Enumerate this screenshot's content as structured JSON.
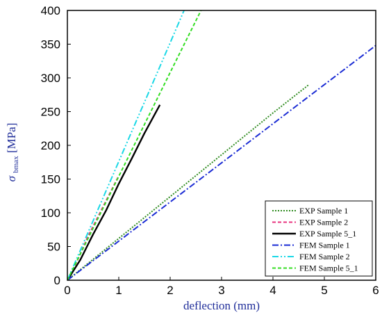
{
  "chart_data": {
    "type": "line",
    "title": "",
    "xlabel": "deflection (mm)",
    "ylabel": {
      "symbol": "σ",
      "subscript": "bmax",
      "unit": "[MPa]"
    },
    "xlim": [
      0,
      6
    ],
    "ylim": [
      0,
      400
    ],
    "xticks": [
      "0",
      "1",
      "2",
      "3",
      "4",
      "5",
      "6"
    ],
    "yticks": [
      "0",
      "50",
      "100",
      "150",
      "200",
      "250",
      "300",
      "350",
      "400"
    ],
    "grid": false,
    "legend_position": "bottom-right",
    "series": [
      {
        "name": "EXP Sample 1",
        "color": "#2e8b1e",
        "dash": "dotted",
        "points": [
          [
            0,
            0
          ],
          [
            1,
            62
          ],
          [
            2,
            124
          ],
          [
            3,
            186
          ],
          [
            4,
            248
          ],
          [
            4.7,
            290
          ]
        ]
      },
      {
        "name": "EXP Sample 2",
        "color": "#e8337f",
        "dash": "dashed",
        "points": [
          [
            0,
            0
          ],
          [
            0.2,
            30
          ],
          [
            0.4,
            65
          ],
          [
            0.6,
            95
          ],
          [
            0.8,
            125
          ],
          [
            1.0,
            155
          ]
        ]
      },
      {
        "name": "EXP Sample 5_1",
        "color": "#000000",
        "dash": "solid",
        "points": [
          [
            0,
            0
          ],
          [
            0.25,
            30
          ],
          [
            0.5,
            68
          ],
          [
            0.75,
            103
          ],
          [
            1.0,
            143
          ],
          [
            1.25,
            180
          ],
          [
            1.5,
            218
          ],
          [
            1.8,
            260
          ]
        ]
      },
      {
        "name": "FEM Sample 1",
        "color": "#1a2bd4",
        "dash": "dashdot",
        "points": [
          [
            0,
            0
          ],
          [
            1,
            58
          ],
          [
            2,
            116
          ],
          [
            3,
            174
          ],
          [
            4,
            232
          ],
          [
            5,
            290
          ],
          [
            6,
            348
          ]
        ]
      },
      {
        "name": "FEM Sample 2",
        "color": "#19d8e6",
        "dash": "dashdotdot",
        "points": [
          [
            0,
            0
          ],
          [
            0.5,
            88
          ],
          [
            1,
            176
          ],
          [
            1.5,
            264
          ],
          [
            2.0,
            352
          ],
          [
            2.27,
            400
          ]
        ]
      },
      {
        "name": "FEM Sample 5_1",
        "color": "#33dd22",
        "dash": "dashed",
        "points": [
          [
            0,
            0
          ],
          [
            0.5,
            77
          ],
          [
            1,
            154
          ],
          [
            1.5,
            231
          ],
          [
            2.0,
            308
          ],
          [
            2.6,
            400
          ]
        ]
      }
    ]
  }
}
